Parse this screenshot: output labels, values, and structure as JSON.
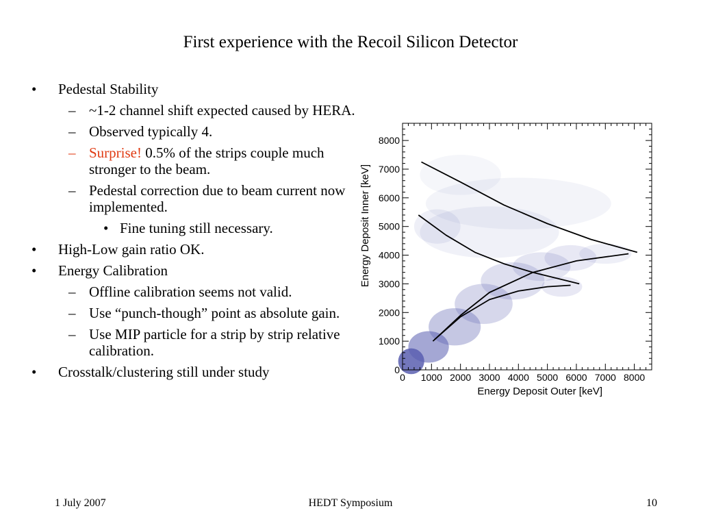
{
  "slide": {
    "title": "First experience with the Recoil Silicon Detector",
    "bullets": [
      {
        "level": 1,
        "marker": "•",
        "text": "Pedestal Stability"
      },
      {
        "level": 2,
        "marker": "–",
        "text": "~1-2 channel shift expected caused by HERA."
      },
      {
        "level": 2,
        "marker": "–",
        "text": "Observed typically 4."
      },
      {
        "level": 2,
        "marker": "–",
        "highlight": "Surprise!",
        "text": "0.5% of the strips couple much stronger to the beam.",
        "marker_color": "#e03a12"
      },
      {
        "level": 2,
        "marker": "–",
        "text": "Pedestal correction due to beam current now implemented."
      },
      {
        "level": 3,
        "marker": "•",
        "text": "Fine tuning still necessary."
      },
      {
        "level": 1,
        "marker": "•",
        "text": "High-Low gain ratio OK."
      },
      {
        "level": 1,
        "marker": "•",
        "text": "Energy Calibration"
      },
      {
        "level": 2,
        "marker": "–",
        "text": "Offline calibration seems not valid."
      },
      {
        "level": 2,
        "marker": "–",
        "text": "Use “punch-though” point as absolute gain."
      },
      {
        "level": 2,
        "marker": "–",
        "text": "Use MIP particle for a strip by strip relative calibration."
      },
      {
        "level": 1,
        "marker": "•",
        "text": "Crosstalk/clustering still under study"
      }
    ],
    "footer": {
      "date": "1 July 2007",
      "event": "HEDT Symposium",
      "page": "10"
    },
    "colors": {
      "highlight": "#e03a12",
      "points": "#5a5fb0"
    }
  },
  "chart_data": {
    "type": "scatter",
    "title": "",
    "xlabel": "Energy Deposit Outer [keV]",
    "ylabel": "Energy Deposit Inner [keV]",
    "xlim": [
      0,
      8600
    ],
    "ylim": [
      0,
      8600
    ],
    "x_ticks": [
      0,
      1000,
      2000,
      3000,
      4000,
      5000,
      6000,
      7000,
      8000
    ],
    "y_ticks": [
      0,
      1000,
      2000,
      3000,
      4000,
      5000,
      6000,
      7000,
      8000
    ],
    "x_tick_labels": [
      "0",
      "1000",
      "2000",
      "3000",
      "4000",
      "5000",
      "6000",
      "7000",
      "8000"
    ],
    "y_tick_labels": [
      "0",
      "1000",
      "2000",
      "3000",
      "4000",
      "5000",
      "6000",
      "7000",
      "8000"
    ],
    "grid": false,
    "curves": [
      {
        "x": [
          650,
          2000,
          3500,
          5000,
          6500,
          8100
        ],
        "y": [
          7250,
          6550,
          5750,
          5100,
          4550,
          4100
        ]
      },
      {
        "x": [
          550,
          1500,
          2500,
          3500,
          4500,
          6100
        ],
        "y": [
          5400,
          4700,
          4100,
          3700,
          3400,
          3000
        ]
      },
      {
        "x": [
          1050,
          2000,
          3000,
          4500,
          6000,
          7800
        ],
        "y": [
          1000,
          1900,
          2700,
          3400,
          3800,
          4050
        ]
      },
      {
        "x": [
          1100,
          2000,
          3000,
          4000,
          5000,
          5800
        ],
        "y": [
          1050,
          1850,
          2450,
          2750,
          2900,
          2950
        ]
      }
    ]
  }
}
